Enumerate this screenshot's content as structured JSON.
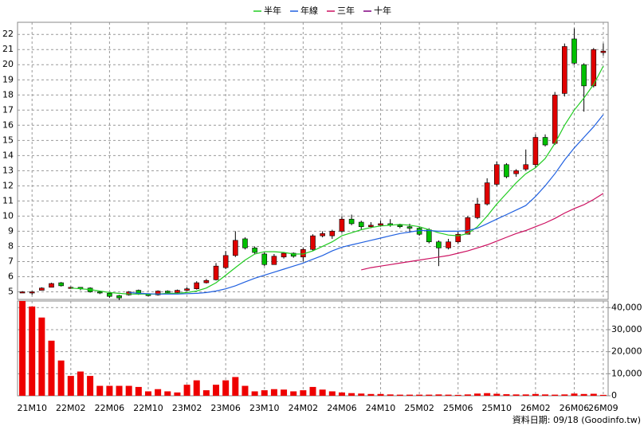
{
  "chart_data": {
    "type": "candlestick",
    "categories": [
      null,
      "21M10",
      null,
      null,
      null,
      "22M02",
      null,
      null,
      null,
      "22M06",
      null,
      null,
      null,
      "22M10",
      null,
      null,
      null,
      "23M02",
      null,
      null,
      null,
      "23M06",
      null,
      null,
      null,
      "23M10",
      null,
      null,
      null,
      "24M02",
      null,
      null,
      null,
      "24M06",
      null,
      null,
      null,
      "24M10",
      null,
      null,
      null,
      "25M02",
      null,
      null,
      null,
      "25M06",
      null,
      null,
      null,
      "25M10",
      null,
      null,
      null,
      "26M02",
      null,
      null,
      null,
      "26M06",
      null,
      null,
      "26M09"
    ],
    "open": [
      5.0,
      5.0,
      5.1,
      5.3,
      5.6,
      5.3,
      5.3,
      5.25,
      5.0,
      4.9,
      4.75,
      4.8,
      5.1,
      4.85,
      4.8,
      5.05,
      4.95,
      5.1,
      5.2,
      5.6,
      5.8,
      6.6,
      7.4,
      8.5,
      7.9,
      7.5,
      6.8,
      7.3,
      7.55,
      7.3,
      7.8,
      8.7,
      8.7,
      9.0,
      9.8,
      9.6,
      9.3,
      9.4,
      9.5,
      9.4,
      9.3,
      9.2,
      9.1,
      8.3,
      7.9,
      8.3,
      8.8,
      9.9,
      10.8,
      12.1,
      13.4,
      12.8,
      13.1,
      13.4,
      15.2,
      14.8,
      18.1,
      21.7,
      20.0,
      18.6,
      20.8
    ],
    "high": [
      5.05,
      5.05,
      5.3,
      5.6,
      5.65,
      5.35,
      5.3,
      5.3,
      5.05,
      4.95,
      4.8,
      5.05,
      5.15,
      4.9,
      5.1,
      5.1,
      5.15,
      5.3,
      5.7,
      5.85,
      6.9,
      7.7,
      9.0,
      8.6,
      8.0,
      7.6,
      7.5,
      7.6,
      7.6,
      7.9,
      8.8,
      9.0,
      9.1,
      10.0,
      10.1,
      9.7,
      9.6,
      9.7,
      9.8,
      9.5,
      9.5,
      9.3,
      9.2,
      8.4,
      8.5,
      9.0,
      10.0,
      11.2,
      12.5,
      13.6,
      13.5,
      13.1,
      14.4,
      15.4,
      15.4,
      18.2,
      21.4,
      22.4,
      20.1,
      21.1,
      21.4
    ],
    "low": [
      4.95,
      4.8,
      5.1,
      5.3,
      5.35,
      5.2,
      5.1,
      4.95,
      4.85,
      4.6,
      4.45,
      4.75,
      4.8,
      4.7,
      4.75,
      4.9,
      4.9,
      5.05,
      5.15,
      5.55,
      5.75,
      6.5,
      7.3,
      7.8,
      7.5,
      6.7,
      6.8,
      7.2,
      7.25,
      7.0,
      7.7,
      8.6,
      8.5,
      8.9,
      9.4,
      9.1,
      9.2,
      9.3,
      9.3,
      9.2,
      8.9,
      8.7,
      8.2,
      6.7,
      7.8,
      8.2,
      8.8,
      9.8,
      10.7,
      12.0,
      12.5,
      12.6,
      13.0,
      13.2,
      14.6,
      14.7,
      17.9,
      20.0,
      16.9,
      18.5,
      20.6
    ],
    "close": [
      5.0,
      5.0,
      5.25,
      5.55,
      5.4,
      5.3,
      5.2,
      5.0,
      4.95,
      4.7,
      4.6,
      5.0,
      4.85,
      4.75,
      5.05,
      4.95,
      5.1,
      5.2,
      5.6,
      5.75,
      6.7,
      7.4,
      8.4,
      7.9,
      7.6,
      6.8,
      7.35,
      7.55,
      7.35,
      7.8,
      8.7,
      8.85,
      9.0,
      9.8,
      9.5,
      9.3,
      9.4,
      9.5,
      9.4,
      9.3,
      9.2,
      8.8,
      8.3,
      7.9,
      8.3,
      8.8,
      9.9,
      10.8,
      12.2,
      13.4,
      12.6,
      13.0,
      13.4,
      15.2,
      14.7,
      18.0,
      21.2,
      20.1,
      18.6,
      21.0,
      20.9
    ],
    "up_color": "#e00000",
    "down_color": "#00c000",
    "series": [
      {
        "name": "半年",
        "color": "#22cc22",
        "values": [
          null,
          null,
          null,
          null,
          null,
          5.25,
          5.2,
          5.15,
          5.05,
          4.95,
          4.9,
          4.85,
          4.85,
          4.85,
          4.85,
          4.9,
          4.9,
          4.95,
          5.05,
          5.25,
          5.6,
          6.1,
          6.6,
          7.1,
          7.5,
          7.65,
          7.65,
          7.6,
          7.5,
          7.5,
          7.7,
          8.0,
          8.3,
          8.7,
          8.9,
          9.1,
          9.25,
          9.35,
          9.4,
          9.45,
          9.4,
          9.3,
          9.1,
          8.9,
          8.75,
          8.7,
          8.85,
          9.3,
          10.0,
          10.8,
          11.5,
          12.2,
          12.8,
          13.2,
          13.8,
          14.8,
          16.0,
          17.0,
          17.8,
          18.7,
          19.9
        ]
      },
      {
        "name": "年線",
        "color": "#2060e0",
        "values": [
          null,
          null,
          null,
          null,
          null,
          null,
          null,
          null,
          null,
          null,
          null,
          4.95,
          4.9,
          4.88,
          4.85,
          4.85,
          4.85,
          4.88,
          4.9,
          4.95,
          5.05,
          5.2,
          5.4,
          5.65,
          5.9,
          6.1,
          6.3,
          6.5,
          6.7,
          6.9,
          7.15,
          7.4,
          7.7,
          7.95,
          8.1,
          8.25,
          8.4,
          8.55,
          8.7,
          8.85,
          8.95,
          9.05,
          9.05,
          9.0,
          9.0,
          9.0,
          9.05,
          9.2,
          9.5,
          9.8,
          10.1,
          10.4,
          10.7,
          11.3,
          12.0,
          12.8,
          13.7,
          14.5,
          15.2,
          15.9,
          16.7
        ]
      },
      {
        "name": "三年",
        "color": "#cc1060",
        "values": [
          null,
          null,
          null,
          null,
          null,
          null,
          null,
          null,
          null,
          null,
          null,
          null,
          null,
          null,
          null,
          null,
          null,
          null,
          null,
          null,
          null,
          null,
          null,
          null,
          null,
          null,
          null,
          null,
          null,
          null,
          null,
          null,
          null,
          null,
          null,
          6.45,
          6.6,
          6.7,
          6.8,
          6.9,
          7.0,
          7.1,
          7.2,
          7.3,
          7.4,
          7.55,
          7.7,
          7.9,
          8.1,
          8.35,
          8.6,
          8.85,
          9.05,
          9.3,
          9.55,
          9.85,
          10.2,
          10.5,
          10.75,
          11.1,
          11.5
        ]
      },
      {
        "name": "十年",
        "color": "#800080",
        "values": [
          null,
          null,
          null,
          null,
          null,
          null,
          null,
          null,
          null,
          null,
          null,
          null,
          null,
          null,
          null,
          null,
          null,
          null,
          null,
          null,
          null,
          null,
          null,
          null,
          null,
          null,
          null,
          null,
          null,
          null,
          null,
          null,
          null,
          null,
          null,
          null,
          null,
          null,
          null,
          null,
          null,
          null,
          null,
          null,
          null,
          null,
          null,
          null,
          null,
          null,
          null,
          null,
          null,
          null,
          null,
          null,
          null,
          null,
          null,
          null,
          null
        ]
      }
    ],
    "ylim": [
      4.5,
      22.8
    ],
    "yticks": [
      5,
      6,
      7,
      8,
      9,
      10,
      11,
      12,
      13,
      14,
      15,
      16,
      17,
      18,
      19,
      20,
      21,
      22
    ],
    "grid": true,
    "legend": "top",
    "volume": {
      "type": "bar",
      "color": "#ee0000",
      "values": [
        43000,
        40500,
        35500,
        25000,
        16000,
        9000,
        11000,
        9000,
        4500,
        4500,
        4500,
        4500,
        4000,
        2000,
        3000,
        2000,
        1500,
        5000,
        7000,
        2500,
        5000,
        7000,
        8500,
        4500,
        2000,
        2500,
        3000,
        2800,
        2000,
        2500,
        4000,
        2800,
        2000,
        1500,
        1200,
        1000,
        800,
        800,
        600,
        500,
        500,
        500,
        500,
        600,
        500,
        400,
        600,
        1000,
        1200,
        900,
        700,
        600,
        600,
        800,
        600,
        500,
        600,
        1000,
        800,
        900,
        400
      ],
      "ylim": [
        0,
        43000
      ],
      "yticks": [
        0,
        {
          "value": 10000,
          "label": "10,000"
        },
        {
          "value": 20000,
          "label": "20,000"
        },
        {
          "value": 30000,
          "label": "30,000"
        },
        {
          "value": 40000,
          "label": "40,000"
        }
      ]
    },
    "source": "資料日期: 09/18 (Goodinfo.tw)"
  }
}
